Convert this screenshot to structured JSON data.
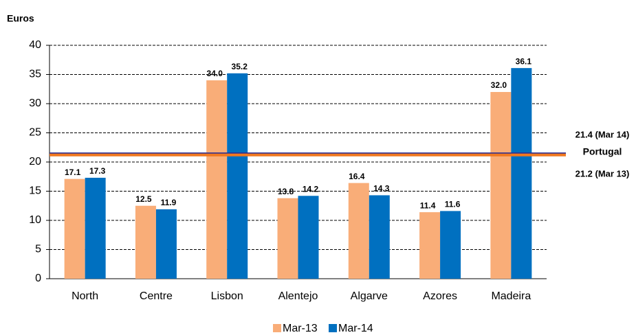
{
  "chart_data": {
    "type": "bar",
    "y_label": "Euros",
    "categories": [
      "North",
      "Centre",
      "Lisbon",
      "Alentejo",
      "Algarve",
      "Azores",
      "Madeira"
    ],
    "series": [
      {
        "name": "Mar-13",
        "color": "#f9ad78",
        "values": [
          17.1,
          12.5,
          34,
          13.8,
          16.4,
          11.4,
          32
        ],
        "value_labels": [
          "17.1",
          "12.5",
          "34.0",
          "13.8",
          "16.4",
          "11.4",
          "32.0"
        ]
      },
      {
        "name": "Mar-14",
        "color": "#0070c0",
        "values": [
          17.3,
          11.9,
          35.2,
          14.2,
          14.3,
          11.6,
          36.1
        ],
        "value_labels": [
          "17.3",
          "11.9",
          "35.2",
          "14.2",
          "14.3",
          "11.6",
          "36.1"
        ]
      }
    ],
    "ylim": [
      0,
      40
    ],
    "yticks": [
      0,
      5,
      10,
      15,
      20,
      25,
      30,
      35,
      40
    ],
    "grid": true,
    "reference_name": "Portugal",
    "reference_lines": [
      {
        "value": 21.4,
        "label": "21.4 (Mar 14)",
        "color": "#2e3192",
        "label_color": "#1f78c8"
      },
      {
        "value": 21.2,
        "label": "21.2 (Mar 13)",
        "color": "#f07820",
        "label_color": "#e87722"
      }
    ]
  }
}
